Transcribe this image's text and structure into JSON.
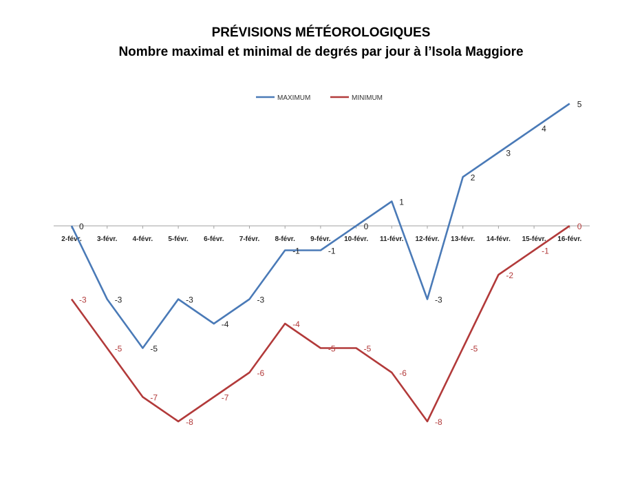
{
  "title": "PRÉVISIONS MÉTÉOROLOGIQUES",
  "subtitle": "Nombre maximal et minimal de degrés par jour à l’Isola Maggiore",
  "colors": {
    "max": "#4a7ab7",
    "min": "#b23a3a",
    "axis": "#a0a0a0"
  },
  "chart_data": {
    "type": "line",
    "title": "PRÉVISIONS MÉTÉOROLOGIQUES",
    "subtitle": "Nombre maximal et minimal de degrés par jour à l’Isola Maggiore",
    "categories": [
      "2-févr.",
      "3-févr.",
      "4-févr.",
      "5-févr.",
      "6-févr.",
      "7-févr.",
      "8-févr.",
      "9-févr.",
      "10-févr.",
      "11-févr.",
      "12-févr.",
      "13-févr.",
      "14-févr.",
      "15-févr.",
      "16-févr."
    ],
    "series": [
      {
        "name": "MAXIMUM",
        "values": [
          0,
          -3,
          -5,
          -3,
          -4,
          -3,
          -1,
          -1,
          0,
          1,
          -3,
          2,
          3,
          4,
          5
        ]
      },
      {
        "name": "MINIMUM",
        "values": [
          -3,
          -5,
          -7,
          -8,
          -7,
          -6,
          -4,
          -5,
          -5,
          -6,
          -8,
          -5,
          -2,
          -1,
          0
        ]
      }
    ],
    "ylim": [
      -8,
      5
    ],
    "grid": false,
    "legend": "top",
    "data_labels": true
  }
}
